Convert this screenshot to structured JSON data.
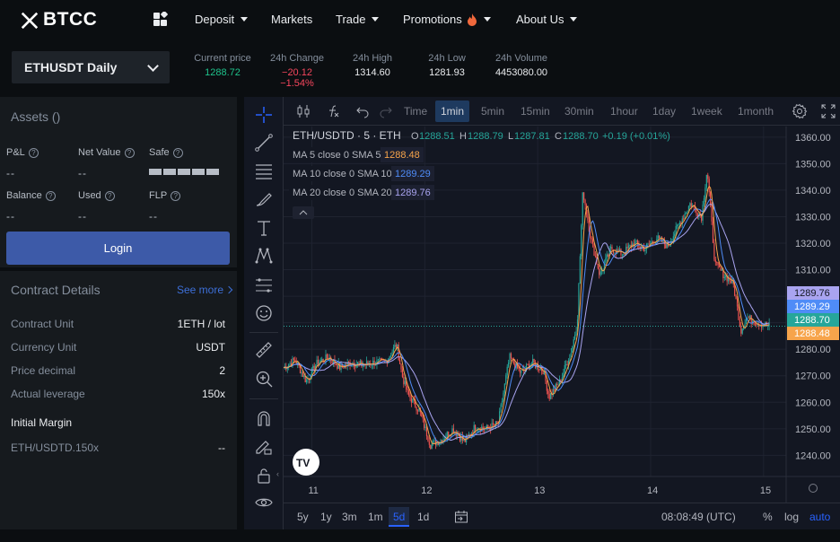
{
  "header": {
    "logo": "BTCC",
    "nav": [
      {
        "label": "Deposit",
        "caret": true
      },
      {
        "label": "Markets",
        "caret": false
      },
      {
        "label": "Trade",
        "caret": true
      },
      {
        "label": "Promotions",
        "caret": true,
        "icon": "fire-icon"
      },
      {
        "label": "About Us",
        "caret": true
      }
    ]
  },
  "ticker": {
    "symbol": "ETHUSDT Daily",
    "stats": [
      {
        "label": "Current price",
        "value": "1288.72",
        "color": "#1ec28b"
      },
      {
        "label": "24h Change",
        "value": "−20.12  −1.54%",
        "color": "#f6465d"
      },
      {
        "label": "24h High",
        "value": "1314.60",
        "color": "#eaecef"
      },
      {
        "label": "24h Low",
        "value": "1281.93",
        "color": "#eaecef"
      },
      {
        "label": "24h Volume",
        "value": "4453080.00",
        "color": "#eaecef"
      }
    ]
  },
  "assets": {
    "title": "Assets ()",
    "pnl_label": "P&L",
    "net_value_label": "Net Value",
    "safe_label": "Safe",
    "balance_label": "Balance",
    "used_label": "Used",
    "flp_label": "FLP",
    "empty": "--",
    "login": "Login"
  },
  "contract": {
    "title": "Contract Details",
    "see_more": "See more",
    "rows": [
      {
        "k": "Contract Unit",
        "v": "1ETH / lot"
      },
      {
        "k": "Currency Unit",
        "v": "USDT"
      },
      {
        "k": "Price decimal",
        "v": "2"
      },
      {
        "k": "Actual leverage",
        "v": "150x"
      }
    ],
    "initial_margin": "Initial Margin",
    "margin_row": {
      "k": "ETH/USDTD.150x",
      "v": "--"
    }
  },
  "chart_toolbar": {
    "time_label": "Time",
    "intervals": [
      "1min",
      "5min",
      "15min",
      "30min",
      "1hour",
      "1day",
      "1week",
      "1month"
    ],
    "active_interval": "1min"
  },
  "bottom_toolbar": {
    "ranges": [
      "5y",
      "1y",
      "3m",
      "1m",
      "5d",
      "1d"
    ],
    "active_range": "5d",
    "clock": "08:08:49 (UTC)",
    "percent": "%",
    "log": "log",
    "auto": "auto"
  },
  "chart_data": {
    "type": "candlestick",
    "symbol": "ETH/USDTD",
    "interval": "5",
    "exchange": "ETH",
    "ohlc": {
      "O": "1288.51",
      "H": "1288.79",
      "L": "1287.81",
      "C": "1288.70",
      "change": "+0.19 (+0.01%)"
    },
    "indicators": [
      {
        "label": "MA 5 close 0 SMA 5",
        "value": "1288.48",
        "color": "#f7a44b"
      },
      {
        "label": "MA 10 close 0 SMA 10",
        "value": "1289.29",
        "color": "#4f8cf7"
      },
      {
        "label": "MA 20 close 0 SMA 20",
        "value": "1289.76",
        "color": "#a9a4f0"
      }
    ],
    "y_ticks": [
      1360,
      1350,
      1340,
      1330,
      1320,
      1310,
      1300,
      1290,
      1280,
      1270,
      1260,
      1250,
      1240
    ],
    "ylim": [
      1232,
      1364
    ],
    "x_ticks": [
      "11",
      "12",
      "13",
      "14",
      "15"
    ],
    "price_labels": [
      {
        "value": "1289.76",
        "color": "#a9a4f0"
      },
      {
        "value": "1289.29",
        "color": "#4f8cf7"
      },
      {
        "value": "1288.70",
        "color": "#26a69a"
      },
      {
        "value": "1288.48",
        "color": "#f7a44b"
      }
    ],
    "series": [
      {
        "x": 0.0,
        "y": 1273
      },
      {
        "x": 0.1,
        "y": 1276
      },
      {
        "x": 0.2,
        "y": 1268
      },
      {
        "x": 0.3,
        "y": 1275
      },
      {
        "x": 0.4,
        "y": 1277
      },
      {
        "x": 0.5,
        "y": 1273
      },
      {
        "x": 0.6,
        "y": 1275
      },
      {
        "x": 0.7,
        "y": 1274
      },
      {
        "x": 0.8,
        "y": 1275
      },
      {
        "x": 0.9,
        "y": 1275
      },
      {
        "x": 1.0,
        "y": 1282
      },
      {
        "x": 1.05,
        "y": 1270
      },
      {
        "x": 1.1,
        "y": 1263
      },
      {
        "x": 1.2,
        "y": 1257
      },
      {
        "x": 1.3,
        "y": 1244
      },
      {
        "x": 1.4,
        "y": 1246
      },
      {
        "x": 1.5,
        "y": 1250
      },
      {
        "x": 1.6,
        "y": 1245
      },
      {
        "x": 1.7,
        "y": 1251
      },
      {
        "x": 1.8,
        "y": 1250
      },
      {
        "x": 1.9,
        "y": 1252
      },
      {
        "x": 2.0,
        "y": 1277
      },
      {
        "x": 2.1,
        "y": 1271
      },
      {
        "x": 2.2,
        "y": 1275
      },
      {
        "x": 2.3,
        "y": 1272
      },
      {
        "x": 2.35,
        "y": 1262
      },
      {
        "x": 2.45,
        "y": 1268
      },
      {
        "x": 2.55,
        "y": 1280
      },
      {
        "x": 2.6,
        "y": 1290
      },
      {
        "x": 2.65,
        "y": 1340
      },
      {
        "x": 2.72,
        "y": 1322
      },
      {
        "x": 2.8,
        "y": 1308
      },
      {
        "x": 2.9,
        "y": 1318
      },
      {
        "x": 3.0,
        "y": 1316
      },
      {
        "x": 3.1,
        "y": 1320
      },
      {
        "x": 3.2,
        "y": 1318
      },
      {
        "x": 3.3,
        "y": 1322
      },
      {
        "x": 3.4,
        "y": 1319
      },
      {
        "x": 3.5,
        "y": 1327
      },
      {
        "x": 3.6,
        "y": 1335
      },
      {
        "x": 3.7,
        "y": 1330
      },
      {
        "x": 3.75,
        "y": 1348
      },
      {
        "x": 3.82,
        "y": 1312
      },
      {
        "x": 3.9,
        "y": 1308
      },
      {
        "x": 3.98,
        "y": 1305
      },
      {
        "x": 4.05,
        "y": 1287
      },
      {
        "x": 4.1,
        "y": 1292
      },
      {
        "x": 4.2,
        "y": 1290
      },
      {
        "x": 4.3,
        "y": 1288.7
      }
    ]
  }
}
